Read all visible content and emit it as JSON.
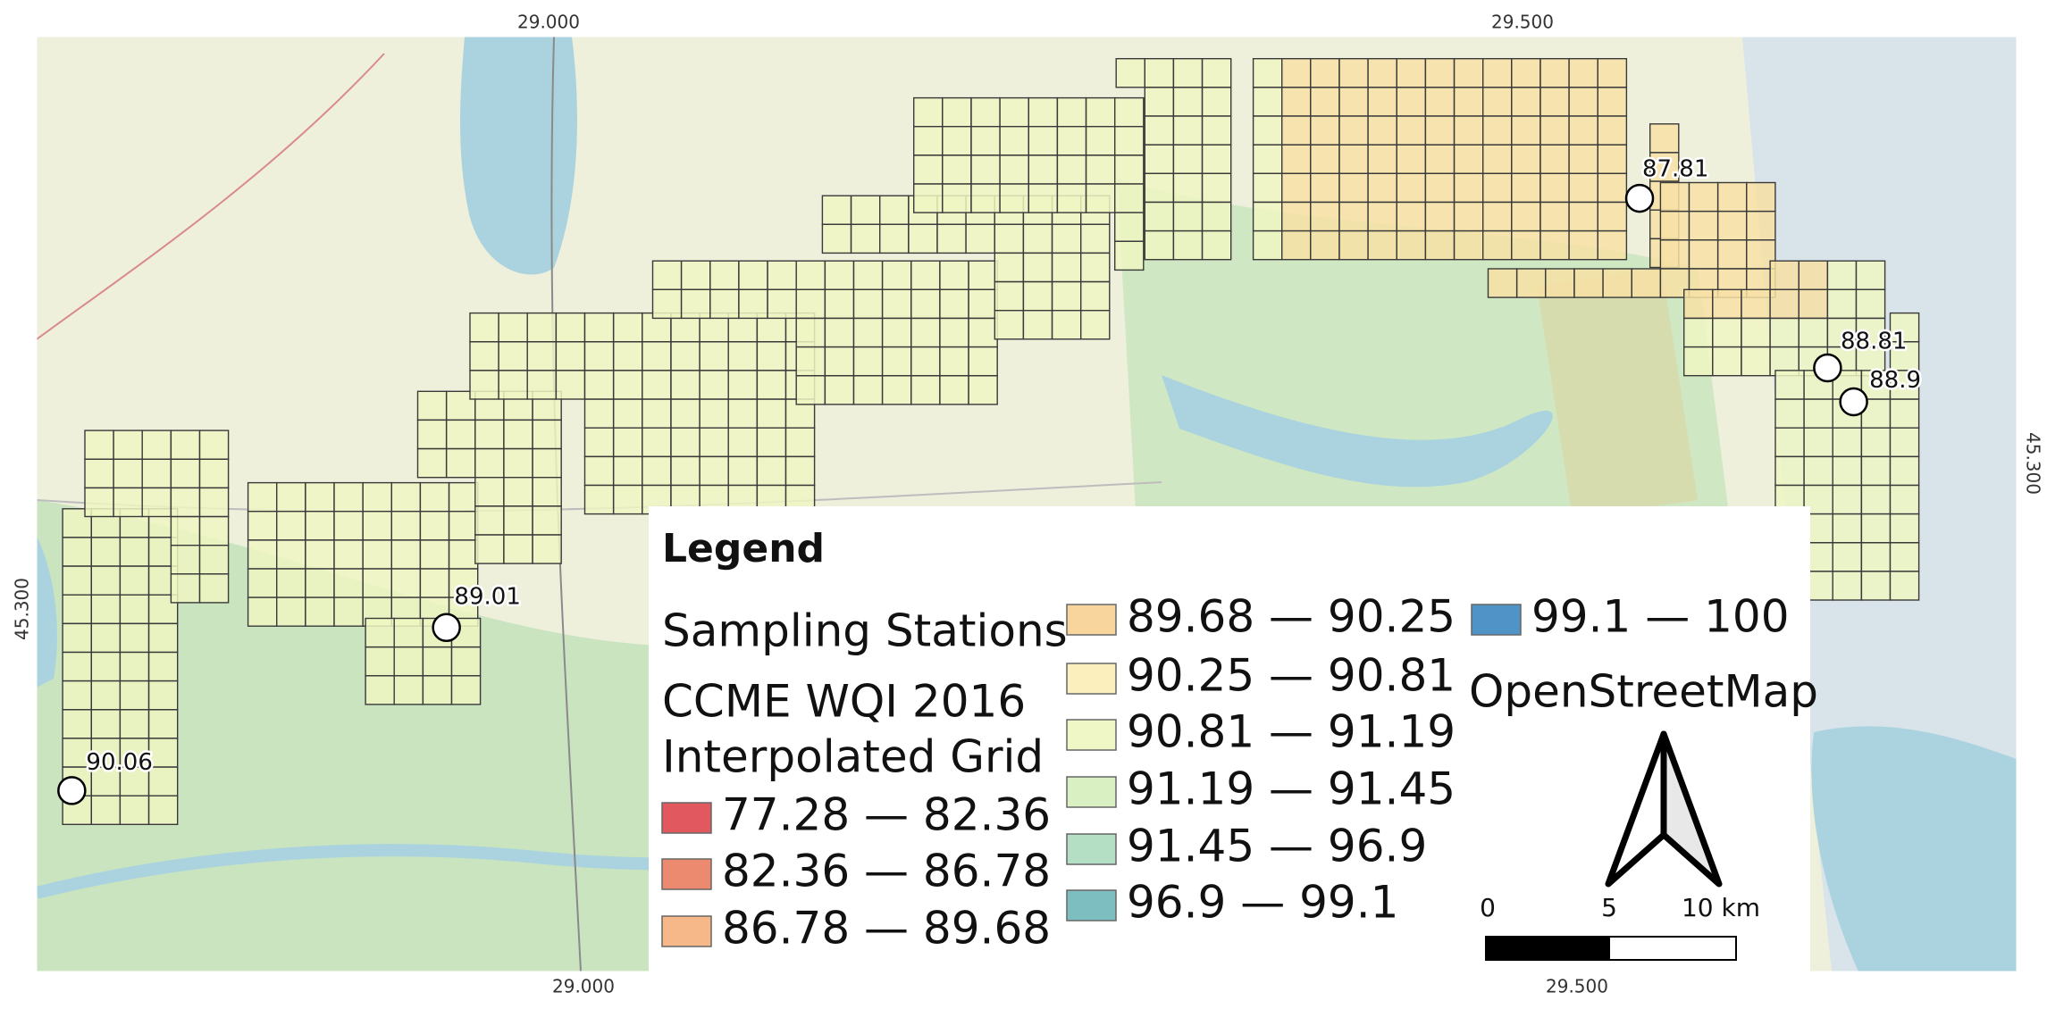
{
  "coordinates": {
    "top": [
      "29.000",
      "29.500"
    ],
    "bottom": [
      "29.000",
      "29.500"
    ],
    "left": "45.300",
    "right": "45.300"
  },
  "stations": [
    {
      "label": "87.81"
    },
    {
      "label": "88.81"
    },
    {
      "label": "88.9"
    },
    {
      "label": "89.01"
    },
    {
      "label": "90.06"
    }
  ],
  "legend": {
    "title": "Legend",
    "stations_label": "Sampling Stations",
    "grid_label": [
      "CCME WQI 2016",
      "Interpolated Grid"
    ],
    "classes": [
      {
        "label": "77.28 — 82.36",
        "color": "#e1585f"
      },
      {
        "label": "82.36 — 86.78",
        "color": "#ec8a6f"
      },
      {
        "label": "86.78 — 89.68",
        "color": "#f6b888"
      },
      {
        "label": "89.68 — 90.25",
        "color": "#f8d59c"
      },
      {
        "label": "90.25 — 90.81",
        "color": "#fbefbd"
      },
      {
        "label": "90.81 — 91.19",
        "color": "#f0f7c6"
      },
      {
        "label": "91.19 — 91.45",
        "color": "#d9f0c3"
      },
      {
        "label": "91.45 — 96.9",
        "color": "#b5dfc4"
      },
      {
        "label": "96.9 — 99.1",
        "color": "#7dbfc1"
      },
      {
        "label": "99.1 — 100",
        "color": "#4f93c7"
      }
    ],
    "basemap": "OpenStreetMap",
    "scale_labels": [
      "0",
      "5",
      "10 km"
    ]
  }
}
